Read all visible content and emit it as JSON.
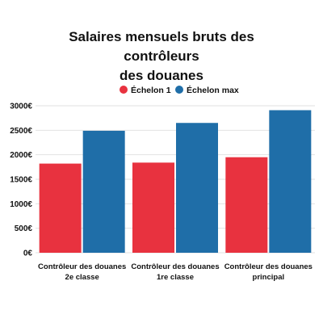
{
  "chart_data": {
    "type": "bar",
    "title_lines": [
      "Salaires mensuels bruts des contrôleurs",
      "des douanes"
    ],
    "categories": [
      [
        "Contrôleur des douanes",
        "2e classe"
      ],
      [
        "Contrôleur des douanes",
        "1re classe"
      ],
      [
        "Contrôleur des douanes",
        "principal"
      ]
    ],
    "series": [
      {
        "name": "Échelon 1",
        "color": "#e8323f",
        "values": [
          1820,
          1840,
          1950
        ]
      },
      {
        "name": "Échelon max",
        "color": "#1f6ea8",
        "values": [
          2490,
          2650,
          2910
        ]
      }
    ],
    "ylim": [
      0,
      3000
    ],
    "yticks": [
      "0€",
      "500€",
      "1000€",
      "1500€",
      "2000€",
      "2500€",
      "3000€"
    ],
    "grid": true,
    "legend_position": "top-center"
  }
}
